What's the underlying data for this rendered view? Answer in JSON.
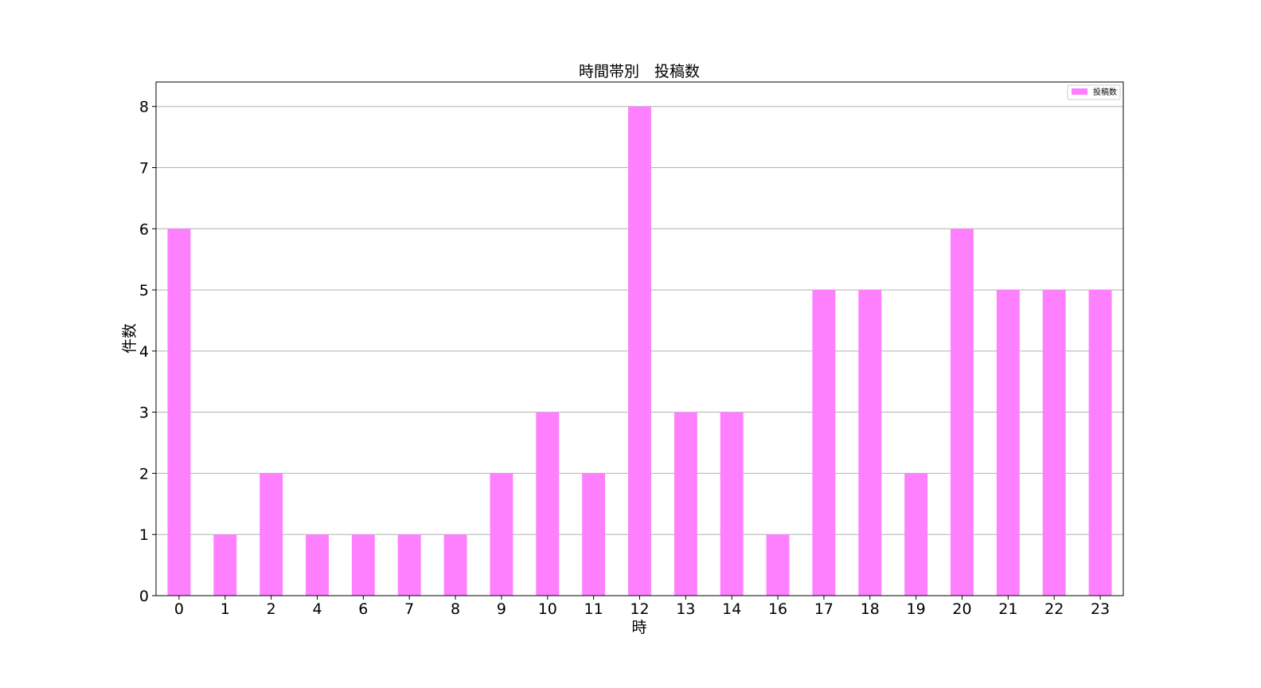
{
  "chart_data": {
    "type": "bar",
    "title": "時間帯別　投稿数",
    "xlabel": "時",
    "ylabel": "件数",
    "categories": [
      "0",
      "1",
      "2",
      "4",
      "6",
      "7",
      "8",
      "9",
      "10",
      "11",
      "12",
      "13",
      "14",
      "16",
      "17",
      "18",
      "19",
      "20",
      "21",
      "22",
      "23"
    ],
    "series": [
      {
        "name": "投稿数",
        "values": [
          6,
          1,
          2,
          1,
          1,
          1,
          1,
          2,
          3,
          2,
          8,
          3,
          3,
          1,
          5,
          5,
          2,
          6,
          5,
          5,
          5
        ]
      }
    ],
    "ylim": [
      0,
      8.4
    ],
    "yticks": [
      0,
      1,
      2,
      3,
      4,
      5,
      6,
      7,
      8
    ],
    "grid": "y",
    "legend_position": "top-right",
    "bar_color": "#ff80ff"
  }
}
